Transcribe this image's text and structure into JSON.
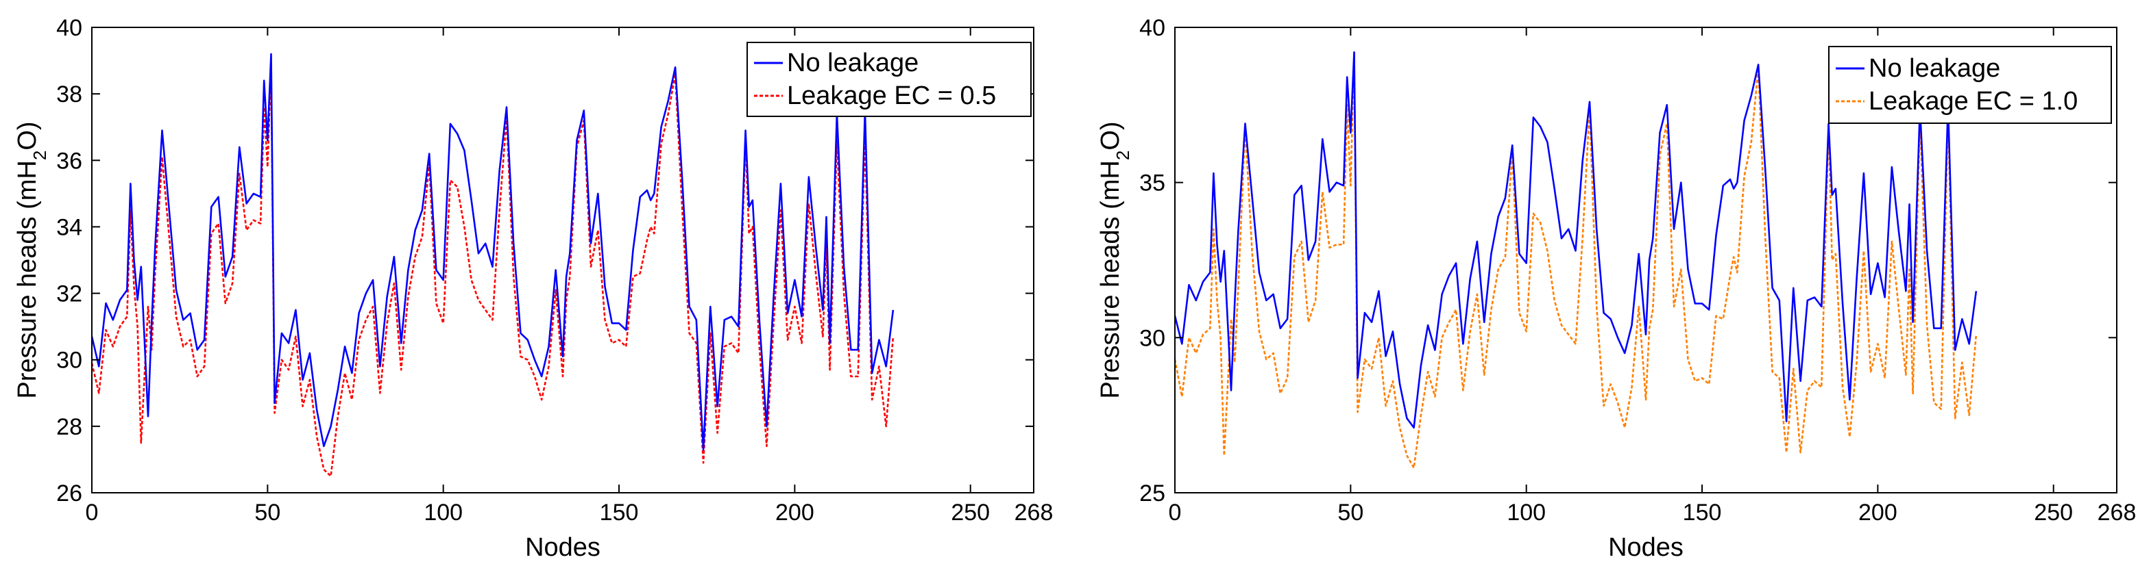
{
  "chart_data": [
    {
      "type": "line",
      "title": "",
      "xlabel": "Nodes",
      "ylabel_main": "Pressure heads (mH",
      "ylabel_sub": "2",
      "ylabel_tail": "O)",
      "xlim": [
        0,
        268
      ],
      "ylim": [
        26,
        40
      ],
      "xticks": [
        0,
        50,
        100,
        150,
        200,
        250,
        268
      ],
      "xtick_labels": [
        "0",
        "50",
        "100",
        "150",
        "200",
        "250",
        "268"
      ],
      "yticks": [
        26,
        28,
        30,
        32,
        34,
        36,
        38,
        40
      ],
      "ytick_labels": [
        "26",
        "28",
        "30",
        "32",
        "34",
        "36",
        "38",
        "40"
      ],
      "legend_position": "top-right",
      "x_anchor_nodes": [
        0,
        2,
        4,
        6,
        8,
        10,
        11,
        12,
        13,
        14,
        16,
        17,
        18,
        20,
        22,
        24,
        26,
        28,
        30,
        32,
        34,
        36,
        38,
        40,
        42,
        44,
        46,
        48,
        49,
        50,
        51,
        52,
        54,
        56,
        58,
        60,
        62,
        64,
        66,
        68,
        70,
        72,
        74,
        76,
        78,
        80,
        82,
        84,
        86,
        88,
        90,
        92,
        94,
        96,
        98,
        100,
        102,
        104,
        106,
        108,
        110,
        112,
        114,
        116,
        118,
        120,
        122,
        124,
        126,
        128,
        130,
        132,
        134,
        135,
        136,
        138,
        140,
        142,
        144,
        146,
        148,
        150,
        152,
        154,
        156,
        158,
        159,
        160,
        162,
        164,
        166,
        168,
        170,
        172,
        174,
        176,
        178,
        180,
        182,
        184,
        186,
        187,
        188,
        190,
        192,
        194,
        196,
        198,
        200,
        202,
        204,
        206,
        208,
        209,
        210,
        212,
        214,
        216,
        218,
        220,
        222,
        224,
        226,
        228,
        230,
        232,
        234,
        236,
        238,
        240,
        242,
        244,
        246,
        248,
        250,
        252,
        254,
        256,
        258,
        260,
        262,
        264,
        266,
        268
      ],
      "series": [
        {
          "name": "No leakage",
          "color": "#0000ff",
          "values": [
            30.7,
            29.8,
            31.7,
            31.2,
            31.8,
            32.1,
            35.3,
            33.0,
            31.8,
            32.8,
            28.3,
            31.1,
            33.4,
            36.9,
            34.5,
            32.1,
            31.2,
            31.4,
            30.3,
            30.6,
            34.6,
            34.9,
            32.5,
            33.1,
            36.4,
            34.7,
            35.0,
            34.9,
            38.4,
            36.6,
            39.2,
            28.7,
            30.8,
            30.5,
            31.5,
            29.4,
            30.2,
            28.5,
            27.4,
            28.0,
            29.1,
            30.4,
            29.6,
            31.4,
            32.0,
            32.4,
            29.8,
            31.9,
            33.1,
            30.5,
            32.7,
            33.9,
            34.5,
            36.2,
            32.7,
            32.4,
            37.1,
            36.8,
            36.3,
            34.8,
            33.2,
            33.5,
            32.8,
            35.7,
            37.6,
            33.5,
            30.8,
            30.6,
            30.0,
            29.5,
            30.4,
            32.7,
            30.1,
            32.5,
            33.2,
            36.6,
            37.5,
            33.5,
            35.0,
            32.2,
            31.1,
            31.1,
            30.9,
            33.3,
            34.9,
            35.1,
            34.8,
            35.0,
            37.0,
            37.8,
            38.8,
            35.4,
            31.6,
            31.2,
            27.3,
            31.6,
            28.6,
            31.2,
            31.3,
            31.0,
            36.9,
            34.6,
            34.8,
            31.1,
            28.0,
            31.9,
            35.3,
            31.4,
            32.4,
            31.3,
            35.5,
            33.4,
            31.5,
            34.3,
            30.5,
            37.4,
            32.8,
            30.3,
            30.3,
            37.5,
            29.6,
            30.6,
            29.8,
            31.5
          ]
        },
        {
          "name": "Leakage EC = 0.5",
          "color": "#ff0000",
          "values": [
            29.9,
            29.0,
            30.9,
            30.4,
            31.0,
            31.3,
            34.5,
            32.2,
            31.0,
            27.5,
            31.6,
            30.3,
            32.6,
            36.1,
            33.7,
            31.3,
            30.4,
            30.6,
            29.5,
            29.8,
            33.8,
            34.1,
            31.7,
            32.3,
            35.6,
            33.9,
            34.2,
            34.1,
            37.6,
            35.8,
            38.9,
            28.4,
            30.0,
            29.7,
            30.7,
            28.6,
            29.4,
            27.7,
            26.7,
            26.5,
            28.3,
            29.6,
            28.8,
            30.6,
            31.2,
            31.6,
            29.0,
            31.1,
            32.3,
            29.7,
            31.9,
            33.1,
            33.7,
            35.9,
            31.7,
            31.1,
            35.4,
            35.2,
            34.0,
            32.4,
            31.8,
            31.5,
            31.2,
            34.5,
            37.3,
            32.5,
            30.1,
            30.0,
            29.5,
            28.8,
            29.8,
            32.1,
            29.5,
            31.8,
            32.5,
            36.4,
            37.2,
            32.8,
            33.9,
            31.2,
            30.5,
            30.6,
            30.4,
            32.5,
            32.6,
            33.6,
            34.0,
            33.8,
            36.5,
            37.4,
            38.6,
            34.5,
            30.8,
            30.5,
            26.9,
            30.8,
            27.8,
            30.4,
            30.5,
            30.2,
            36.6,
            33.8,
            34.0,
            30.3,
            27.4,
            31.1,
            34.5,
            30.6,
            31.6,
            30.5,
            34.7,
            32.6,
            30.7,
            33.5,
            29.7,
            36.6,
            32.0,
            29.5,
            29.5,
            36.7,
            28.8,
            29.8,
            28.0,
            30.7
          ]
        }
      ]
    },
    {
      "type": "line",
      "title": "",
      "xlabel": "Nodes",
      "ylabel_main": "Pressure heads (mH",
      "ylabel_sub": "2",
      "ylabel_tail": "O)",
      "xlim": [
        0,
        268
      ],
      "ylim": [
        25,
        40
      ],
      "xticks": [
        0,
        50,
        100,
        150,
        200,
        250,
        268
      ],
      "xtick_labels": [
        "0",
        "50",
        "100",
        "150",
        "200",
        "250",
        "268"
      ],
      "yticks": [
        25,
        30,
        35,
        40
      ],
      "ytick_labels": [
        "25",
        "30",
        "35",
        "40"
      ],
      "legend_position": "top-right",
      "x_anchor_nodes": [
        0,
        2,
        4,
        6,
        8,
        10,
        11,
        12,
        13,
        14,
        16,
        17,
        18,
        20,
        22,
        24,
        26,
        28,
        30,
        32,
        34,
        36,
        38,
        40,
        42,
        44,
        46,
        48,
        49,
        50,
        51,
        52,
        54,
        56,
        58,
        60,
        62,
        64,
        66,
        68,
        70,
        72,
        74,
        76,
        78,
        80,
        82,
        84,
        86,
        88,
        90,
        92,
        94,
        96,
        98,
        100,
        102,
        104,
        106,
        108,
        110,
        112,
        114,
        116,
        118,
        120,
        122,
        124,
        126,
        128,
        130,
        132,
        134,
        135,
        136,
        138,
        140,
        142,
        144,
        146,
        148,
        150,
        152,
        154,
        156,
        158,
        159,
        160,
        162,
        164,
        166,
        168,
        170,
        172,
        174,
        176,
        178,
        180,
        182,
        184,
        186,
        187,
        188,
        190,
        192,
        194,
        196,
        198,
        200,
        202,
        204,
        206,
        208,
        209,
        210,
        212,
        214,
        216,
        218,
        220,
        222,
        224,
        226,
        228,
        230,
        232,
        234,
        236,
        238,
        240,
        242,
        244,
        246,
        248,
        250,
        252,
        254,
        256,
        258,
        260,
        262,
        264,
        266,
        268
      ],
      "series": [
        {
          "name": "No leakage",
          "color": "#0000ff",
          "values": [
            30.7,
            29.8,
            31.7,
            31.2,
            31.8,
            32.1,
            35.3,
            33.0,
            31.8,
            32.8,
            28.3,
            31.1,
            33.4,
            36.9,
            34.5,
            32.1,
            31.2,
            31.4,
            30.3,
            30.6,
            34.6,
            34.9,
            32.5,
            33.1,
            36.4,
            34.7,
            35.0,
            34.9,
            38.4,
            36.6,
            39.2,
            28.7,
            30.8,
            30.5,
            31.5,
            29.4,
            30.2,
            28.5,
            27.4,
            27.1,
            29.1,
            30.4,
            29.6,
            31.4,
            32.0,
            32.4,
            29.8,
            31.9,
            33.1,
            30.5,
            32.7,
            33.9,
            34.5,
            36.2,
            32.7,
            32.4,
            37.1,
            36.8,
            36.3,
            34.8,
            33.2,
            33.5,
            32.8,
            35.7,
            37.6,
            33.5,
            30.8,
            30.6,
            30.0,
            29.5,
            30.4,
            32.7,
            30.1,
            32.5,
            33.2,
            36.6,
            37.5,
            33.5,
            35.0,
            32.2,
            31.1,
            31.1,
            30.9,
            33.3,
            34.9,
            35.1,
            34.8,
            35.0,
            37.0,
            37.8,
            38.8,
            35.4,
            31.6,
            31.2,
            27.3,
            31.6,
            28.6,
            31.2,
            31.3,
            31.0,
            36.9,
            34.6,
            34.8,
            31.1,
            28.0,
            31.9,
            35.3,
            31.4,
            32.4,
            31.3,
            35.5,
            33.4,
            31.5,
            34.3,
            30.5,
            37.4,
            32.8,
            30.3,
            30.3,
            37.5,
            29.6,
            30.6,
            29.8,
            31.5
          ]
        },
        {
          "name": "Leakage EC = 1.0",
          "color": "#ff7f00",
          "values": [
            29.3,
            28.1,
            30.0,
            29.5,
            30.1,
            30.3,
            33.5,
            31.2,
            30.0,
            26.2,
            30.6,
            29.2,
            31.6,
            36.8,
            32.7,
            30.2,
            29.3,
            29.5,
            28.2,
            28.7,
            32.6,
            33.1,
            30.5,
            31.2,
            34.7,
            32.9,
            33.0,
            33.0,
            37.5,
            34.9,
            39.2,
            27.6,
            29.3,
            29.0,
            30.0,
            27.8,
            28.6,
            27.1,
            26.2,
            25.8,
            27.5,
            28.9,
            28.1,
            30.0,
            30.5,
            30.9,
            28.3,
            30.2,
            31.4,
            28.8,
            30.9,
            32.2,
            32.6,
            36.0,
            30.8,
            30.2,
            34.0,
            33.7,
            32.8,
            31.2,
            30.4,
            30.1,
            29.8,
            33.2,
            37.4,
            31.0,
            27.8,
            28.5,
            27.9,
            27.1,
            28.4,
            31.0,
            28.0,
            30.3,
            30.9,
            35.9,
            36.9,
            31.0,
            32.2,
            29.3,
            28.6,
            28.7,
            28.5,
            30.7,
            30.6,
            32.0,
            32.6,
            32.1,
            35.2,
            36.3,
            38.7,
            33.2,
            28.9,
            28.7,
            26.3,
            29.0,
            26.3,
            28.3,
            28.6,
            28.4,
            36.9,
            32.5,
            32.7,
            28.4,
            26.8,
            29.2,
            32.8,
            28.9,
            29.8,
            28.7,
            33.1,
            30.9,
            28.8,
            32.2,
            28.2,
            37.2,
            30.4,
            27.9,
            27.7,
            37.3,
            27.4,
            29.2,
            27.5,
            30.1
          ]
        }
      ]
    }
  ]
}
